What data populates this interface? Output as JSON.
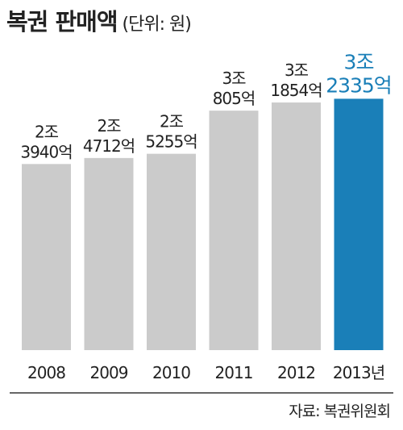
{
  "title": "복권 판매액",
  "unit": "(단위: 원)",
  "source": "자료: 복권위원회",
  "colors": {
    "bar_default": "#cbcbcb",
    "bar_highlight": "#1a7fb8",
    "label_default": "#222222",
    "label_highlight": "#1a7fb8",
    "axis": "#333333"
  },
  "chart_data": {
    "type": "bar",
    "categories": [
      "2008",
      "2009",
      "2010",
      "2011",
      "2012",
      "2013년"
    ],
    "values": [
      23940,
      24712,
      25255,
      30805,
      31854,
      32335
    ],
    "value_unit": "억 원",
    "labels": [
      [
        "2조",
        "3940억"
      ],
      [
        "2조",
        "4712억"
      ],
      [
        "2조",
        "5255억"
      ],
      [
        "3조",
        "805억"
      ],
      [
        "3조",
        "1854억"
      ],
      [
        "3조",
        "2335억"
      ]
    ],
    "highlight_index": 5,
    "ylim": [
      0,
      33000
    ],
    "title": "복권 판매액",
    "xlabel": "",
    "ylabel": "",
    "grid": false,
    "legend": "none"
  }
}
